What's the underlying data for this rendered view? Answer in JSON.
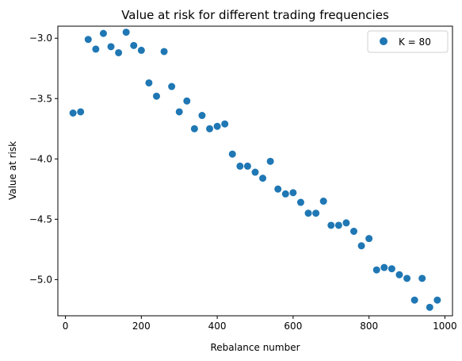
{
  "chart_data": {
    "type": "scatter",
    "title": "Value at risk for different trading frequencies",
    "xlabel": "Rebalance number",
    "ylabel": "Value at risk",
    "xlim": [
      -20,
      1020
    ],
    "ylim": [
      -5.3,
      -2.9
    ],
    "xticks": [
      0,
      200,
      400,
      600,
      800,
      1000
    ],
    "yticks": [
      -5.0,
      -4.5,
      -4.0,
      -3.5,
      -3.0
    ],
    "xtick_labels": [
      "0",
      "200",
      "400",
      "600",
      "800",
      "1000"
    ],
    "ytick_labels": [
      "−5.0",
      "−4.5",
      "−4.0",
      "−3.5",
      "−3.0"
    ],
    "grid": false,
    "legend_position": "top-right",
    "series": [
      {
        "name": "K = 80",
        "color": "#1f77b4",
        "x": [
          20,
          40,
          60,
          80,
          100,
          120,
          140,
          160,
          180,
          200,
          220,
          240,
          260,
          280,
          300,
          320,
          340,
          360,
          380,
          400,
          420,
          440,
          460,
          480,
          500,
          520,
          540,
          560,
          580,
          600,
          620,
          640,
          660,
          680,
          700,
          720,
          740,
          760,
          780,
          800,
          820,
          840,
          860,
          880,
          900,
          920,
          940,
          960,
          980
        ],
        "y": [
          -3.62,
          -3.61,
          -3.01,
          -3.09,
          -2.96,
          -3.07,
          -3.12,
          -2.95,
          -3.06,
          -3.1,
          -3.37,
          -3.48,
          -3.11,
          -3.4,
          -3.61,
          -3.52,
          -3.75,
          -3.64,
          -3.75,
          -3.73,
          -3.71,
          -3.96,
          -4.06,
          -4.06,
          -4.11,
          -4.16,
          -4.02,
          -4.25,
          -4.29,
          -4.28,
          -4.36,
          -4.45,
          -4.45,
          -4.35,
          -4.55,
          -4.55,
          -4.53,
          -4.6,
          -4.72,
          -4.66,
          -4.92,
          -4.9,
          -4.91,
          -4.96,
          -4.99,
          -5.17,
          -4.99,
          -5.23,
          -5.17
        ]
      }
    ]
  }
}
